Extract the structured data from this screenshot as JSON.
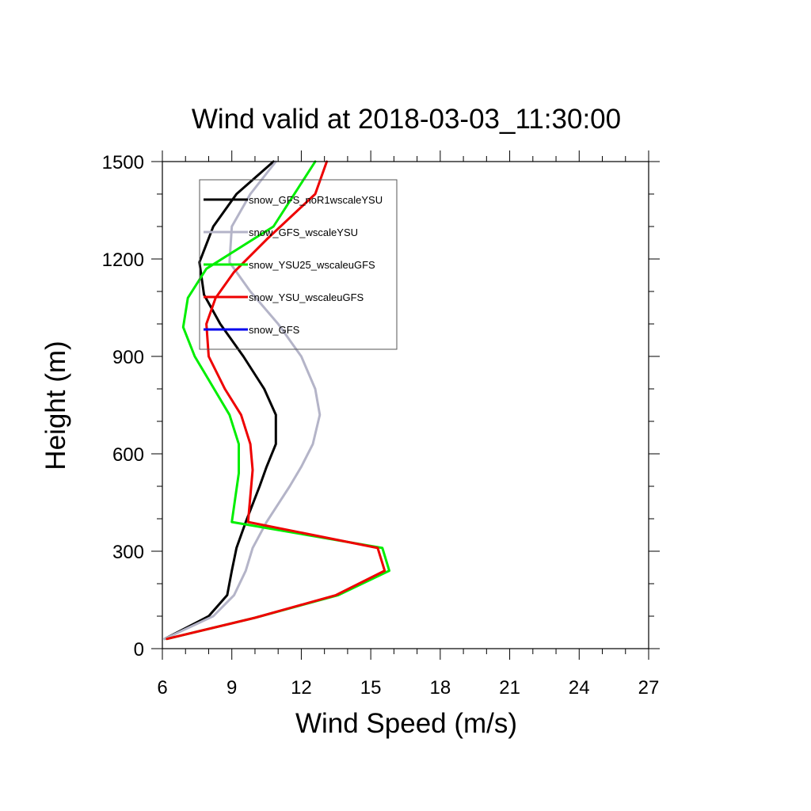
{
  "chart_data": {
    "type": "line",
    "title": "Wind valid at 2018-03-03_11:30:00",
    "xlabel": "Wind Speed (m/s)",
    "ylabel": "Height (m)",
    "xlim": [
      6,
      27
    ],
    "ylim": [
      0,
      1500
    ],
    "xticks": [
      6,
      9,
      12,
      15,
      18,
      21,
      24,
      27
    ],
    "yticks": [
      0,
      300,
      600,
      900,
      1200,
      1500
    ],
    "xtick_labels": [
      "6",
      "9",
      "12",
      "15",
      "18",
      "21",
      "24",
      "27"
    ],
    "ytick_labels": [
      "0",
      "300",
      "600",
      "900",
      "1200",
      "1500"
    ],
    "x_minor_step": 1,
    "y_minor_step": 100,
    "grid": false,
    "legend_position": "top-left",
    "series": [
      {
        "name": "snow_GFS_noR1wscaleYSU",
        "color": "#000000",
        "points": [
          [
            6.1,
            30
          ],
          [
            8.0,
            100
          ],
          [
            8.8,
            165
          ],
          [
            9.0,
            240
          ],
          [
            9.2,
            310
          ],
          [
            9.6,
            390
          ],
          [
            10.2,
            500
          ],
          [
            10.5,
            560
          ],
          [
            10.9,
            630
          ],
          [
            10.9,
            720
          ],
          [
            10.4,
            800
          ],
          [
            9.5,
            900
          ],
          [
            8.5,
            1000
          ],
          [
            7.8,
            1090
          ],
          [
            7.6,
            1190
          ],
          [
            8.2,
            1300
          ],
          [
            9.2,
            1400
          ],
          [
            10.8,
            1500
          ]
        ]
      },
      {
        "name": "snow_GFS_wscaleYSU",
        "color": "#b4b4c8",
        "points": [
          [
            6.1,
            30
          ],
          [
            8.2,
            100
          ],
          [
            9.1,
            165
          ],
          [
            9.6,
            240
          ],
          [
            9.9,
            310
          ],
          [
            10.5,
            390
          ],
          [
            11.5,
            500
          ],
          [
            12.0,
            560
          ],
          [
            12.5,
            630
          ],
          [
            12.8,
            720
          ],
          [
            12.6,
            800
          ],
          [
            12.0,
            900
          ],
          [
            11.0,
            1000
          ],
          [
            9.8,
            1100
          ],
          [
            8.9,
            1190
          ],
          [
            9.0,
            1300
          ],
          [
            9.8,
            1400
          ],
          [
            10.9,
            1500
          ]
        ]
      },
      {
        "name": "snow_YSU25_wscaleuGFS",
        "color": "#00ee00",
        "points": [
          [
            6.2,
            30
          ],
          [
            10.0,
            95
          ],
          [
            13.6,
            165
          ],
          [
            15.8,
            240
          ],
          [
            15.5,
            310
          ],
          [
            9.0,
            390
          ],
          [
            9.3,
            540
          ],
          [
            9.3,
            630
          ],
          [
            8.9,
            720
          ],
          [
            7.4,
            900
          ],
          [
            6.9,
            990
          ],
          [
            7.1,
            1080
          ],
          [
            7.9,
            1170
          ],
          [
            10.8,
            1300
          ],
          [
            12.6,
            1500
          ]
        ]
      },
      {
        "name": "snow_YSU_wscaleuGFS",
        "color": "#ee0000",
        "points": [
          [
            6.2,
            30
          ],
          [
            10.0,
            95
          ],
          [
            13.5,
            165
          ],
          [
            15.6,
            240
          ],
          [
            15.3,
            310
          ],
          [
            9.7,
            390
          ],
          [
            9.9,
            550
          ],
          [
            9.8,
            630
          ],
          [
            9.4,
            720
          ],
          [
            8.7,
            800
          ],
          [
            8.0,
            900
          ],
          [
            7.9,
            1000
          ],
          [
            8.3,
            1080
          ],
          [
            9.1,
            1160
          ],
          [
            10.5,
            1260
          ],
          [
            12.6,
            1400
          ],
          [
            13.1,
            1500
          ]
        ]
      },
      {
        "name": "snow_GFS",
        "color": "#0000ee",
        "points": []
      }
    ]
  }
}
